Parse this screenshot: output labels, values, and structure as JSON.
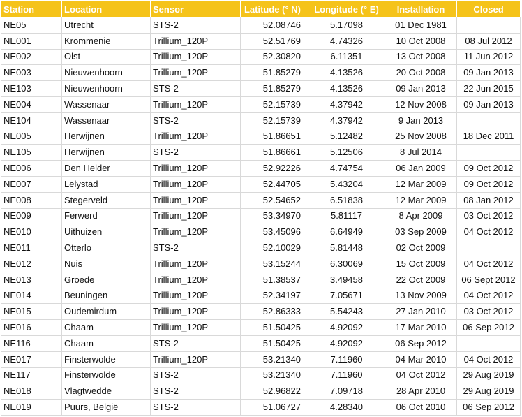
{
  "header_color": "#f5c31a",
  "columns": [
    "Station",
    "Location",
    "Sensor",
    "Latitude (° N)",
    "Longitude (° E)",
    "Installation",
    "Closed"
  ],
  "rows": [
    [
      "NE05",
      "Utrecht",
      "STS-2",
      "52.08746",
      "5.17098",
      "01 Dec 1981",
      ""
    ],
    [
      "NE001",
      "Krommenie",
      "Trillium_120P",
      "52.51769",
      "4.74326",
      "10 Oct 2008",
      "08 Jul 2012"
    ],
    [
      "NE002",
      "Olst",
      "Trillium_120P",
      "52.30820",
      "6.11351",
      "13 Oct 2008",
      "11 Jun 2012"
    ],
    [
      "NE003",
      "Nieuwenhoorn",
      "Trillium_120P",
      "51.85279",
      "4.13526",
      "20 Oct 2008",
      "09 Jan 2013"
    ],
    [
      "NE103",
      "Nieuwenhoorn",
      "STS-2",
      "51.85279",
      "4.13526",
      "09 Jan 2013",
      "22 Jun 2015"
    ],
    [
      "NE004",
      "Wassenaar",
      "Trillium_120P",
      "52.15739",
      "4.37942",
      "12 Nov 2008",
      "09 Jan 2013"
    ],
    [
      "NE104",
      "Wassenaar",
      "STS-2",
      "52.15739",
      "4.37942",
      "9 Jan 2013",
      ""
    ],
    [
      "NE005",
      "Herwijnen",
      "Trillium_120P",
      "51.86651",
      "5.12482",
      "25 Nov 2008",
      "18 Dec 2011"
    ],
    [
      "NE105",
      "Herwijnen",
      "STS-2",
      "51.86661",
      "5.12506",
      "8 Jul 2014",
      ""
    ],
    [
      "NE006",
      "Den Helder",
      "Trillium_120P",
      "52.92226",
      "4.74754",
      "06 Jan 2009",
      "09 Oct 2012"
    ],
    [
      "NE007",
      "Lelystad",
      "Trillium_120P",
      "52.44705",
      "5.43204",
      "12 Mar 2009",
      "09 Oct 2012"
    ],
    [
      "NE008",
      "Stegerveld",
      "Trillium_120P",
      "52.54652",
      "6.51838",
      "12 Mar 2009",
      "08 Jan 2012"
    ],
    [
      "NE009",
      "Ferwerd",
      "Trillium_120P",
      "53.34970",
      "5.81117",
      "8 Apr 2009",
      "03 Oct 2012"
    ],
    [
      "NE010",
      "Uithuizen",
      "Trillium_120P",
      "53.45096",
      "6.64949",
      "03 Sep 2009",
      "04 Oct 2012"
    ],
    [
      "NE011",
      "Otterlo",
      "STS-2",
      "52.10029",
      "5.81448",
      "02 Oct 2009",
      ""
    ],
    [
      "NE012",
      "Nuis",
      "Trillium_120P",
      "53.15244",
      "6.30069",
      "15 Oct 2009",
      "04 Oct 2012"
    ],
    [
      "NE013",
      "Groede",
      "Trillium_120P",
      "51.38537",
      "3.49458",
      "22 Oct 2009",
      "06 Sept 2012"
    ],
    [
      "NE014",
      "Beuningen",
      "Trillium_120P",
      "52.34197",
      "7.05671",
      "13 Nov 2009",
      "04 Oct 2012"
    ],
    [
      "NE015",
      "Oudemirdum",
      "Trillium_120P",
      "52.86333",
      "5.54243",
      "27 Jan 2010",
      "03 Oct 2012"
    ],
    [
      "NE016",
      "Chaam",
      "Trillium_120P",
      "51.50425",
      "4.92092",
      "17 Mar 2010",
      "06 Sep 2012"
    ],
    [
      "NE116",
      "Chaam",
      "STS-2",
      "51.50425",
      "4.92092",
      "06 Sep 2012",
      ""
    ],
    [
      "NE017",
      "Finsterwolde",
      "Trillium_120P",
      "53.21340",
      "7.11960",
      "04 Mar 2010",
      "04 Oct 2012"
    ],
    [
      "NE117",
      "Finsterwolde",
      "STS-2",
      "53.21340",
      "7.11960",
      "04 Oct 2012",
      "29 Aug 2019"
    ],
    [
      "NE018",
      "Vlagtwedde",
      "STS-2",
      "52.96822",
      "7.09718",
      "28 Apr 2010",
      "29 Aug 2019"
    ],
    [
      "NE019",
      "Puurs, België",
      "STS-2",
      "51.06727",
      "4.28340",
      "06 Oct 2010",
      "06 Sep 2012"
    ]
  ]
}
